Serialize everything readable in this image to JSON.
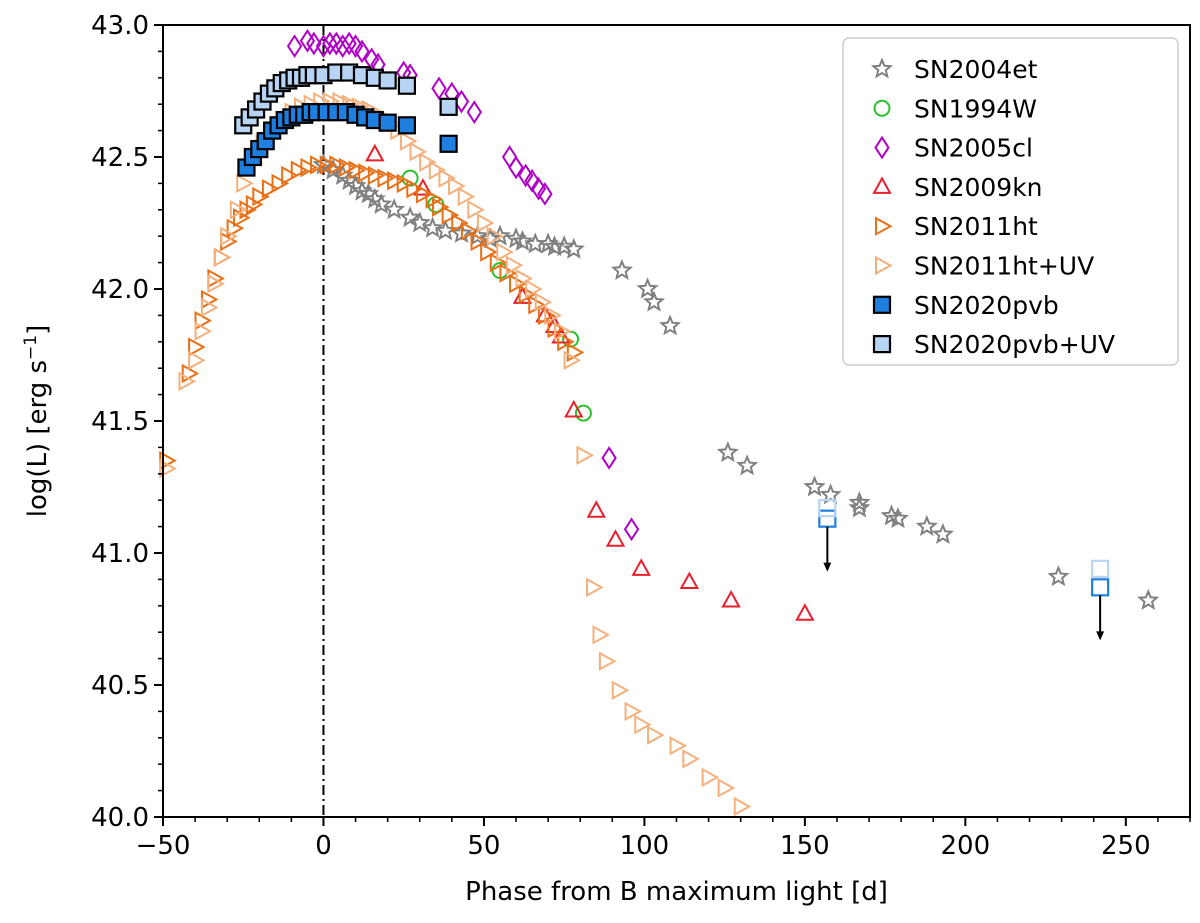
{
  "chart_data": {
    "type": "scatter",
    "xlabel": "Phase from B maximum light [d]",
    "ylabel_main": "log(L) [erg s",
    "ylabel_sup": "−1",
    "ylabel_tail": "]",
    "xlim": [
      -50,
      270
    ],
    "ylim": [
      40.0,
      43.0
    ],
    "x_ticks": [
      -50,
      0,
      50,
      100,
      150,
      200,
      250
    ],
    "x_tick_labels": [
      "−50",
      "0",
      "50",
      "100",
      "150",
      "200",
      "250"
    ],
    "y_ticks": [
      40.0,
      40.5,
      41.0,
      41.5,
      42.0,
      42.5,
      43.0
    ],
    "y_tick_labels": [
      "40.0",
      "40.5",
      "41.0",
      "41.5",
      "42.0",
      "42.5",
      "43.0"
    ],
    "vline_x": 0,
    "legend_position": "top-right",
    "series": [
      {
        "name": "SN2004et",
        "marker": "star",
        "stroke": "#808080",
        "fill": "none",
        "points": [
          [
            0,
            42.47
          ],
          [
            3,
            42.45
          ],
          [
            6,
            42.43
          ],
          [
            8,
            42.41
          ],
          [
            10,
            42.39
          ],
          [
            12,
            42.37
          ],
          [
            14,
            42.36
          ],
          [
            16,
            42.34
          ],
          [
            18,
            42.32
          ],
          [
            22,
            42.3
          ],
          [
            27,
            42.27
          ],
          [
            30,
            42.25
          ],
          [
            34,
            42.23
          ],
          [
            38,
            42.22
          ],
          [
            43,
            42.21
          ],
          [
            48,
            42.2
          ],
          [
            52,
            42.19
          ],
          [
            55,
            42.2
          ],
          [
            60,
            42.19
          ],
          [
            62,
            42.18
          ],
          [
            66,
            42.17
          ],
          [
            70,
            42.17
          ],
          [
            72,
            42.16
          ],
          [
            75,
            42.16
          ],
          [
            78,
            42.15
          ],
          [
            93,
            42.07
          ],
          [
            101,
            42.0
          ],
          [
            103,
            41.95
          ],
          [
            108,
            41.86
          ],
          [
            126,
            41.38
          ],
          [
            132,
            41.33
          ],
          [
            153,
            41.25
          ],
          [
            158,
            41.22
          ],
          [
            167,
            41.19
          ],
          [
            167,
            41.17
          ],
          [
            177,
            41.14
          ],
          [
            179,
            41.13
          ],
          [
            188,
            41.1
          ],
          [
            193,
            41.07
          ],
          [
            229,
            40.91
          ],
          [
            257,
            40.82
          ]
        ]
      },
      {
        "name": "SN1994W",
        "marker": "circle",
        "stroke": "#2cc02c",
        "fill": "none",
        "points": [
          [
            27,
            42.42
          ],
          [
            35,
            42.32
          ],
          [
            55,
            42.07
          ],
          [
            77,
            41.81
          ],
          [
            81,
            41.53
          ]
        ]
      },
      {
        "name": "SN2005cl",
        "marker": "diamond",
        "stroke": "#b000c8",
        "fill": "none",
        "points": [
          [
            -9,
            42.92
          ],
          [
            -5,
            42.94
          ],
          [
            -3,
            42.93
          ],
          [
            0,
            42.92
          ],
          [
            2,
            42.93
          ],
          [
            4,
            42.93
          ],
          [
            6,
            42.92
          ],
          [
            8,
            42.93
          ],
          [
            10,
            42.92
          ],
          [
            12,
            42.9
          ],
          [
            15,
            42.87
          ],
          [
            17,
            42.85
          ],
          [
            25,
            42.82
          ],
          [
            27,
            42.81
          ],
          [
            36,
            42.76
          ],
          [
            40,
            42.74
          ],
          [
            43,
            42.71
          ],
          [
            47,
            42.67
          ],
          [
            58,
            42.5
          ],
          [
            60,
            42.46
          ],
          [
            63,
            42.43
          ],
          [
            65,
            42.41
          ],
          [
            67,
            42.38
          ],
          [
            69,
            42.36
          ],
          [
            89,
            41.36
          ],
          [
            96,
            41.09
          ]
        ]
      },
      {
        "name": "SN2009kn",
        "marker": "triangle",
        "stroke": "#e8202c",
        "fill": "none",
        "points": [
          [
            16,
            42.51
          ],
          [
            31,
            42.38
          ],
          [
            62,
            41.97
          ],
          [
            69,
            41.9
          ],
          [
            72,
            41.86
          ],
          [
            74,
            41.82
          ],
          [
            78,
            41.54
          ],
          [
            85,
            41.16
          ],
          [
            91,
            41.05
          ],
          [
            99,
            40.94
          ],
          [
            114,
            40.89
          ],
          [
            127,
            40.82
          ],
          [
            150,
            40.77
          ]
        ]
      },
      {
        "name": "SN2011ht",
        "marker": "triangle-right",
        "stroke": "#e87016",
        "fill": "none",
        "points": [
          [
            -49,
            41.35
          ],
          [
            -42,
            41.68
          ],
          [
            -40,
            41.78
          ],
          [
            -38,
            41.88
          ],
          [
            -36,
            41.96
          ],
          [
            -34,
            42.04
          ],
          [
            -32,
            42.12
          ],
          [
            -30,
            42.18
          ],
          [
            -28,
            42.23
          ],
          [
            -26,
            42.27
          ],
          [
            -24,
            42.3
          ],
          [
            -22,
            42.32
          ],
          [
            -20,
            42.35
          ],
          [
            -17,
            42.38
          ],
          [
            -14,
            42.4
          ],
          [
            -11,
            42.43
          ],
          [
            -8,
            42.45
          ],
          [
            -5,
            42.46
          ],
          [
            -2,
            42.47
          ],
          [
            1,
            42.47
          ],
          [
            4,
            42.47
          ],
          [
            7,
            42.46
          ],
          [
            10,
            42.45
          ],
          [
            13,
            42.44
          ],
          [
            16,
            42.43
          ],
          [
            19,
            42.42
          ],
          [
            22,
            42.41
          ],
          [
            25,
            42.4
          ],
          [
            28,
            42.38
          ],
          [
            31,
            42.36
          ],
          [
            34,
            42.34
          ],
          [
            36,
            42.31
          ],
          [
            39,
            42.28
          ],
          [
            42,
            42.25
          ],
          [
            45,
            42.22
          ],
          [
            48,
            42.18
          ],
          [
            51,
            42.14
          ],
          [
            54,
            42.1
          ],
          [
            57,
            42.06
          ],
          [
            60,
            42.02
          ],
          [
            63,
            41.98
          ],
          [
            66,
            41.94
          ],
          [
            69,
            41.9
          ],
          [
            72,
            41.85
          ],
          [
            75,
            41.8
          ],
          [
            78,
            41.76
          ]
        ]
      },
      {
        "name": "SN2011ht+UV",
        "marker": "triangle-right",
        "stroke": "#f4b07c",
        "fill": "none",
        "points": [
          [
            -49,
            41.32
          ],
          [
            -43,
            41.65
          ],
          [
            -40,
            41.73
          ],
          [
            -38,
            41.84
          ],
          [
            -36,
            41.93
          ],
          [
            -34,
            42.02
          ],
          [
            -32,
            42.12
          ],
          [
            -30,
            42.2
          ],
          [
            -27,
            42.3
          ],
          [
            -25,
            42.4
          ],
          [
            -22,
            42.48
          ],
          [
            -19,
            42.55
          ],
          [
            -16,
            42.6
          ],
          [
            -13,
            42.64
          ],
          [
            -10,
            42.67
          ],
          [
            -7,
            42.69
          ],
          [
            -4,
            42.7
          ],
          [
            -1,
            42.71
          ],
          [
            2,
            42.71
          ],
          [
            5,
            42.71
          ],
          [
            8,
            42.7
          ],
          [
            11,
            42.69
          ],
          [
            14,
            42.68
          ],
          [
            17,
            42.66
          ],
          [
            20,
            42.63
          ],
          [
            23,
            42.6
          ],
          [
            26,
            42.56
          ],
          [
            29,
            42.52
          ],
          [
            32,
            42.48
          ],
          [
            35,
            42.45
          ],
          [
            38,
            42.42
          ],
          [
            41,
            42.39
          ],
          [
            44,
            42.35
          ],
          [
            47,
            42.3
          ],
          [
            50,
            42.25
          ],
          [
            53,
            42.2
          ],
          [
            56,
            42.14
          ],
          [
            59,
            42.09
          ],
          [
            62,
            42.04
          ],
          [
            65,
            42.0
          ],
          [
            68,
            41.95
          ],
          [
            71,
            41.9
          ],
          [
            74,
            41.84
          ],
          [
            77,
            41.73
          ],
          [
            81,
            41.37
          ],
          [
            84,
            40.87
          ],
          [
            86,
            40.69
          ],
          [
            88,
            40.59
          ],
          [
            92,
            40.48
          ],
          [
            96,
            40.4
          ],
          [
            99,
            40.35
          ],
          [
            103,
            40.31
          ],
          [
            110,
            40.27
          ],
          [
            114,
            40.22
          ],
          [
            120,
            40.15
          ],
          [
            125,
            40.11
          ],
          [
            130,
            40.04
          ]
        ]
      },
      {
        "name": "SN2020pvb",
        "marker": "square",
        "stroke": "#000000",
        "fill": "#1f7fe0",
        "points": [
          [
            -24,
            42.46
          ],
          [
            -22,
            42.5
          ],
          [
            -20,
            42.53
          ],
          [
            -18,
            42.56
          ],
          [
            -16,
            42.6
          ],
          [
            -14,
            42.62
          ],
          [
            -12,
            42.64
          ],
          [
            -10,
            42.65
          ],
          [
            -8,
            42.66
          ],
          [
            -6,
            42.66
          ],
          [
            -4,
            42.67
          ],
          [
            -2,
            42.67
          ],
          [
            1,
            42.67
          ],
          [
            4,
            42.67
          ],
          [
            7,
            42.67
          ],
          [
            10,
            42.66
          ],
          [
            13,
            42.65
          ],
          [
            16,
            42.64
          ],
          [
            20,
            42.63
          ],
          [
            26,
            42.62
          ],
          [
            39,
            42.55
          ]
        ]
      },
      {
        "name": "SN2020pvb+UV",
        "marker": "square",
        "stroke": "#000000",
        "fill": "#b8d4f4",
        "points": [
          [
            -25,
            42.62
          ],
          [
            -23,
            42.65
          ],
          [
            -21,
            42.68
          ],
          [
            -19,
            42.71
          ],
          [
            -17,
            42.74
          ],
          [
            -15,
            42.76
          ],
          [
            -13,
            42.78
          ],
          [
            -11,
            42.79
          ],
          [
            -9,
            42.8
          ],
          [
            -7,
            42.8
          ],
          [
            -5,
            42.81
          ],
          [
            -3,
            42.81
          ],
          [
            0,
            42.81
          ],
          [
            4,
            42.82
          ],
          [
            8,
            42.82
          ],
          [
            12,
            42.81
          ],
          [
            16,
            42.8
          ],
          [
            20,
            42.79
          ],
          [
            26,
            42.77
          ],
          [
            39,
            42.69
          ]
        ]
      }
    ],
    "upper_limits": [
      {
        "series": "SN2020pvb",
        "x": 157,
        "y": 41.13,
        "stroke": "#1f7fe0"
      },
      {
        "series": "SN2020pvb+UV",
        "x": 157,
        "y": 41.17,
        "stroke": "#b8d4f4"
      },
      {
        "series": "SN2020pvb",
        "x": 242,
        "y": 40.87,
        "stroke": "#1f7fe0"
      },
      {
        "series": "SN2020pvb+UV",
        "x": 242,
        "y": 40.94,
        "stroke": "#b8d4f4"
      }
    ]
  }
}
